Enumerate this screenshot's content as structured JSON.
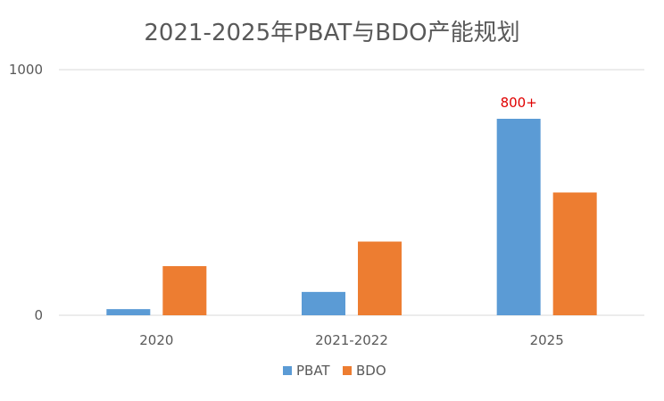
{
  "chart_data": {
    "type": "bar",
    "title": "2021-2025年PBAT与BDO产能规划",
    "categories": [
      "2020",
      "2021-2022",
      "2025"
    ],
    "series": [
      {
        "name": "PBAT",
        "values": [
          25,
          95,
          800
        ],
        "color": "#5b9bd5"
      },
      {
        "name": "BDO",
        "values": [
          200,
          300,
          500
        ],
        "color": "#ed7d31"
      }
    ],
    "ylim": [
      0,
      1000
    ],
    "yticks": [
      "0",
      "1000"
    ],
    "grid": true,
    "legend": "bottom-center",
    "annotations": [
      {
        "text": "800+",
        "series": "PBAT",
        "category": "2025",
        "color": "#e00000"
      }
    ]
  }
}
